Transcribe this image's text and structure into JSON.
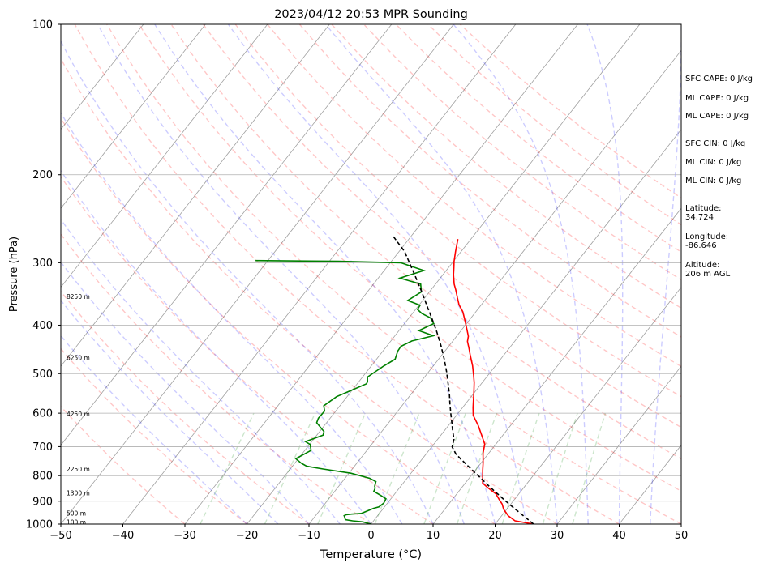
{
  "chart_data": {
    "type": "line",
    "title": "2023/04/12 20:53 MPR Sounding",
    "xlabel": "Temperature (°C)",
    "ylabel": "Pressure (hPa)",
    "xlim": [
      -50,
      50
    ],
    "ylim": [
      1000,
      100
    ],
    "y_scale": "log",
    "grid": true,
    "x_ticks": [
      -50,
      -40,
      -30,
      -20,
      -10,
      0,
      10,
      20,
      30,
      40,
      50
    ],
    "y_ticks": [
      100,
      200,
      300,
      400,
      500,
      600,
      700,
      800,
      900,
      1000
    ],
    "height_labels": [
      {
        "text": "100 m",
        "p": 993
      },
      {
        "text": "500 m",
        "p": 952
      },
      {
        "text": "1300 m",
        "p": 868
      },
      {
        "text": "2250 m",
        "p": 778
      },
      {
        "text": "4250 m",
        "p": 603
      },
      {
        "text": "6250 m",
        "p": 465
      },
      {
        "text": "8250 m",
        "p": 351
      }
    ],
    "series": [
      {
        "kind": "temperature",
        "color": "#ff0000",
        "points": [
          [
            26.2,
            1000
          ],
          [
            22.8,
            985
          ],
          [
            21.1,
            963
          ],
          [
            19.5,
            934
          ],
          [
            18.6,
            912
          ],
          [
            17.5,
            892
          ],
          [
            16.3,
            870
          ],
          [
            14.1,
            844
          ],
          [
            12.8,
            828
          ],
          [
            12.2,
            810
          ],
          [
            11.2,
            781
          ],
          [
            10.3,
            754
          ],
          [
            9.1,
            722
          ],
          [
            8.2,
            692
          ],
          [
            6.4,
            661
          ],
          [
            4.8,
            635
          ],
          [
            2.7,
            606
          ],
          [
            1.7,
            585
          ],
          [
            0.9,
            567
          ],
          [
            -0.3,
            541
          ],
          [
            -1.3,
            521
          ],
          [
            -2.3,
            504
          ],
          [
            -3.7,
            482
          ],
          [
            -5.5,
            458
          ],
          [
            -6.4,
            446
          ],
          [
            -7.6,
            431
          ],
          [
            -8.1,
            421
          ],
          [
            -9.1,
            409
          ],
          [
            -10.6,
            392
          ],
          [
            -12.1,
            376
          ],
          [
            -13.6,
            364
          ],
          [
            -14.7,
            353
          ],
          [
            -16.0,
            340
          ],
          [
            -17.0,
            331
          ],
          [
            -18.3,
            317
          ],
          [
            -19.2,
            306
          ],
          [
            -19.9,
            298
          ],
          [
            -20.9,
            285
          ],
          [
            -22.1,
            269
          ]
        ]
      },
      {
        "kind": "dewpoint",
        "color": "#008000",
        "points": [
          [
            0.0,
            1000
          ],
          [
            -1.6,
            990
          ],
          [
            -3.4,
            985
          ],
          [
            -4.7,
            980
          ],
          [
            -5.1,
            969
          ],
          [
            -5.4,
            962
          ],
          [
            -5.2,
            958
          ],
          [
            -4.4,
            955
          ],
          [
            -2.9,
            952
          ],
          [
            -1.6,
            930
          ],
          [
            -0.9,
            924
          ],
          [
            -0.6,
            908
          ],
          [
            -0.8,
            890
          ],
          [
            -2.0,
            877
          ],
          [
            -3.7,
            860
          ],
          [
            -3.9,
            847
          ],
          [
            -4.2,
            840
          ],
          [
            -4.6,
            822
          ],
          [
            -6.0,
            810
          ],
          [
            -9.7,
            791
          ],
          [
            -14.7,
            776
          ],
          [
            -17.7,
            766
          ],
          [
            -19.0,
            755
          ],
          [
            -20.4,
            740
          ],
          [
            -19.0,
            712
          ],
          [
            -19.9,
            693
          ],
          [
            -21.0,
            684
          ],
          [
            -19.0,
            664
          ],
          [
            -19.3,
            653
          ],
          [
            -21.6,
            627
          ],
          [
            -21.9,
            614
          ],
          [
            -21.8,
            594
          ],
          [
            -22.6,
            580
          ],
          [
            -21.7,
            556
          ],
          [
            -20.1,
            540
          ],
          [
            -18.5,
            524
          ],
          [
            -18.6,
            519
          ],
          [
            -19.2,
            508
          ],
          [
            -18.0,
            483
          ],
          [
            -17.0,
            468
          ],
          [
            -17.6,
            451
          ],
          [
            -17.7,
            441
          ],
          [
            -16.6,
            430
          ],
          [
            -13.8,
            420
          ],
          [
            -16.8,
            410
          ],
          [
            -15.3,
            397
          ],
          [
            -16.5,
            387
          ],
          [
            -18.5,
            379
          ],
          [
            -19.7,
            372
          ],
          [
            -19.8,
            365
          ],
          [
            -22.4,
            357
          ],
          [
            -21.3,
            343
          ],
          [
            -22.4,
            331
          ],
          [
            -26.5,
            322
          ],
          [
            -23.6,
            311
          ],
          [
            -28.3,
            300
          ],
          [
            -38.5,
            298
          ],
          [
            -52.0,
            297
          ]
        ]
      },
      {
        "kind": "parcel",
        "color": "#000000",
        "points": [
          [
            26.2,
            1000
          ],
          [
            23.7,
            965
          ],
          [
            21.1,
            930
          ],
          [
            18.6,
            897
          ],
          [
            16.1,
            864
          ],
          [
            13.7,
            833
          ],
          [
            11.3,
            802
          ],
          [
            9.6,
            781
          ],
          [
            8.0,
            762
          ],
          [
            6.3,
            742
          ],
          [
            4.8,
            724
          ],
          [
            3.3,
            701
          ],
          [
            2.6,
            676
          ],
          [
            1.3,
            650
          ],
          [
            0.1,
            625
          ],
          [
            -1.2,
            600
          ],
          [
            -2.5,
            575
          ],
          [
            -3.8,
            550
          ],
          [
            -5.4,
            523
          ],
          [
            -7.1,
            496
          ],
          [
            -9.0,
            469
          ],
          [
            -11.2,
            441
          ],
          [
            -13.8,
            412
          ],
          [
            -16.1,
            389
          ],
          [
            -18.5,
            367
          ],
          [
            -20.9,
            346
          ],
          [
            -23.5,
            325
          ],
          [
            -26.2,
            305
          ],
          [
            -29.1,
            285
          ],
          [
            -33.0,
            265
          ]
        ]
      }
    ],
    "background_lines": {
      "dry_adiabat_color": "#ff0000",
      "moist_adiabat_color": "#0000ff",
      "mixing_ratio_color": "#008000",
      "isotherm_color": "#808080"
    }
  },
  "side_panel": [
    {
      "text": "SFC CAPE: 0 J/kg",
      "top": 92
    },
    {
      "text": "ML CAPE: 0 J/kg",
      "top": 116
    },
    {
      "text": "ML CAPE: 0 J/kg",
      "top": 138
    },
    {
      "text": "SFC CIN: 0 J/kg",
      "top": 172
    },
    {
      "text": "ML CIN: 0 J/kg",
      "top": 195
    },
    {
      "text": "ML CIN: 0 J/kg",
      "top": 218
    },
    {
      "text": "Latitude:\n34.724",
      "top": 252
    },
    {
      "text": "Longitude:\n-86.646",
      "top": 287
    },
    {
      "text": "Altitude:\n206 m AGL",
      "top": 322
    }
  ]
}
